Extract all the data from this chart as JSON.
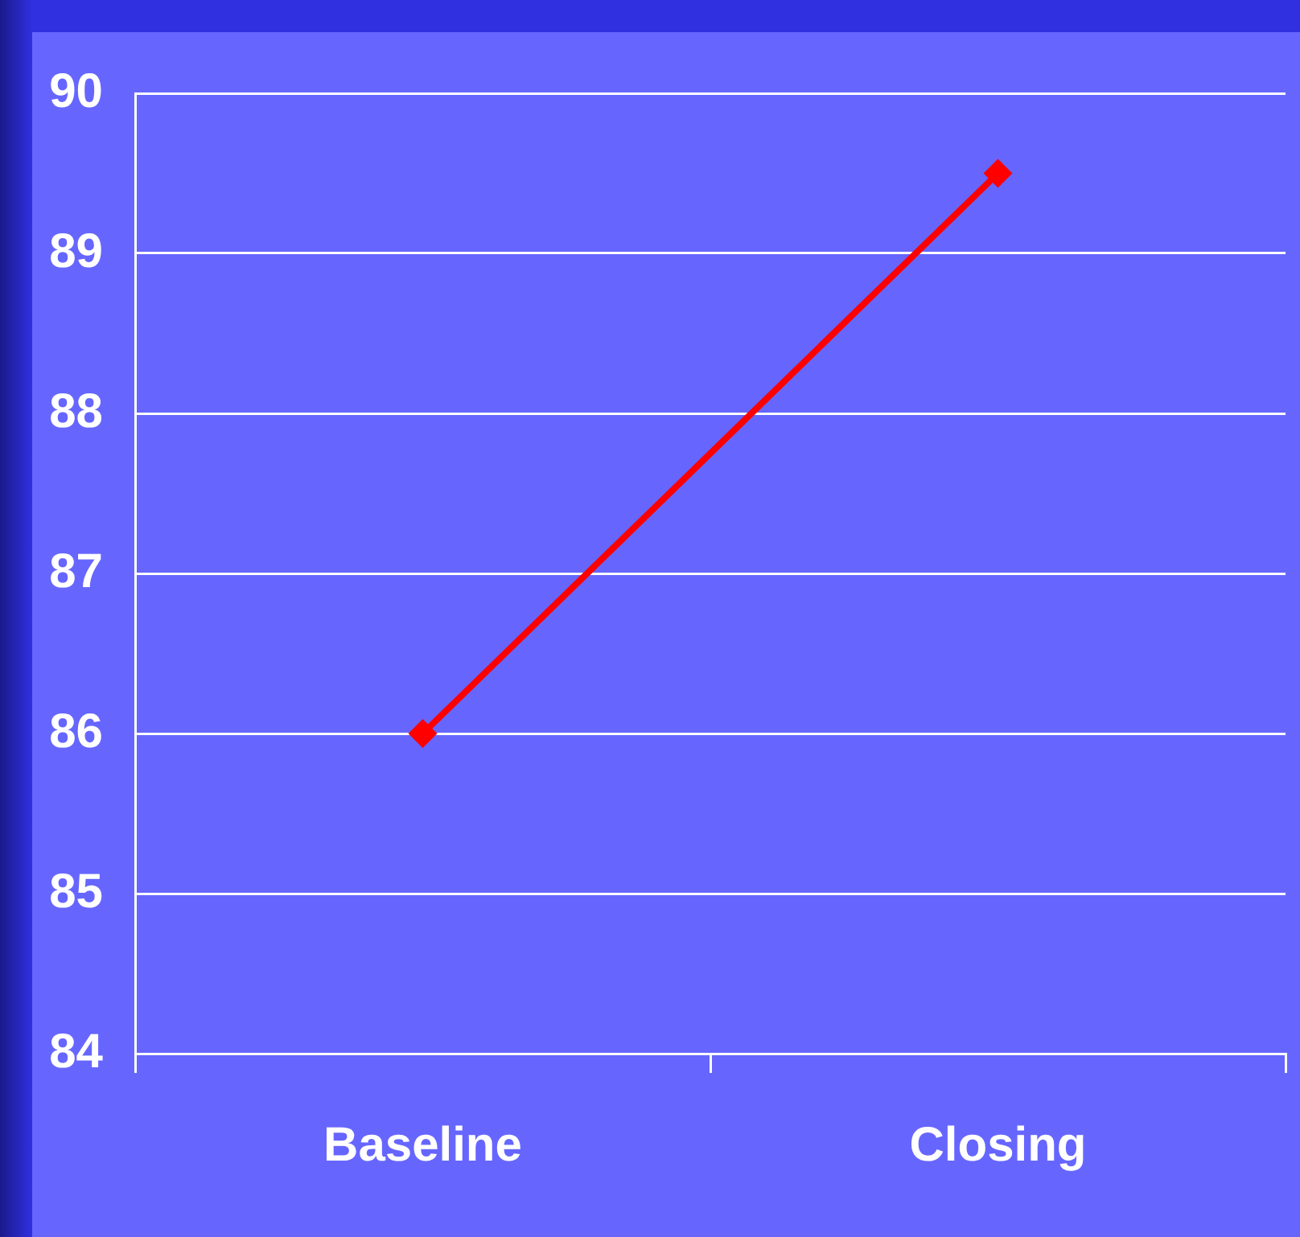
{
  "chart_data": {
    "type": "line",
    "categories": [
      "Baseline",
      "Closing"
    ],
    "series": [
      {
        "color": "#ff0000",
        "values": [
          86.0,
          89.5
        ]
      }
    ],
    "ylim": [
      84,
      90
    ],
    "yticks": [
      84,
      85,
      86,
      87,
      88,
      89,
      90
    ],
    "grid": "y",
    "legend": false,
    "marker": "diamond",
    "line_style": "solid"
  }
}
